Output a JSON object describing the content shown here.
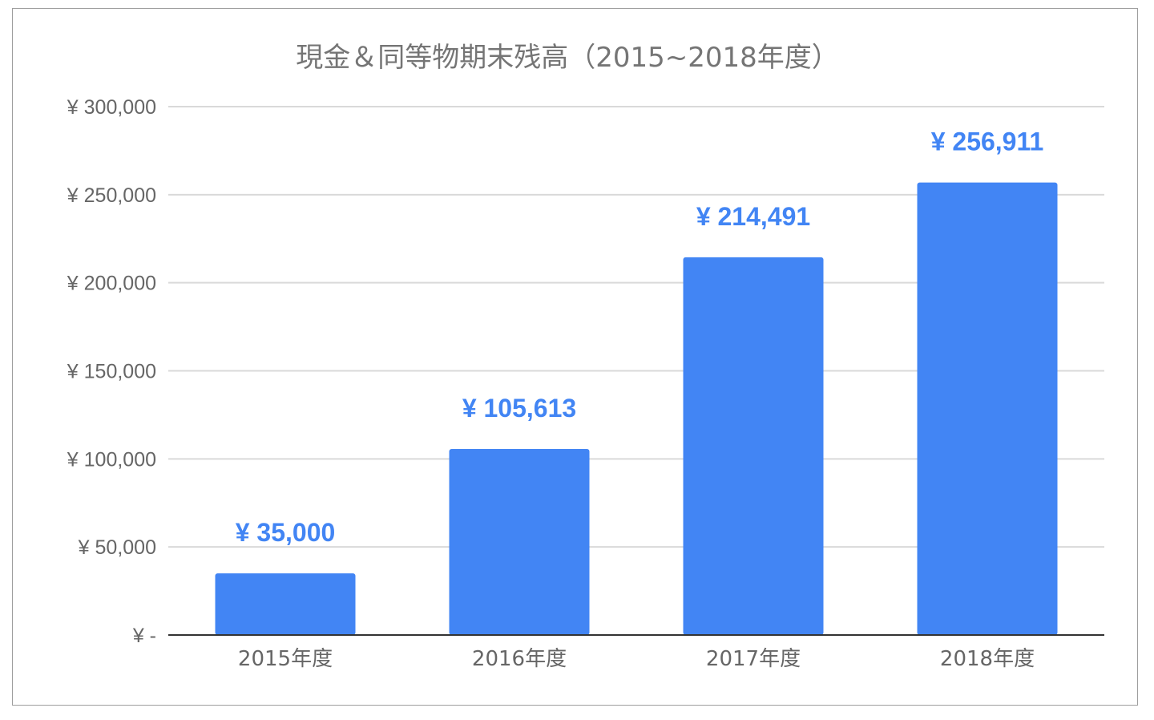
{
  "chart_data": {
    "type": "bar",
    "title": "現金＆同等物期末残高（2015~2018年度）",
    "categories": [
      "2015年度",
      "2016年度",
      "2017年度",
      "2018年度"
    ],
    "values": [
      35000,
      105613,
      214491,
      256911
    ],
    "data_labels": [
      "¥ 35,000",
      "¥ 105,613",
      "¥ 214,491",
      "¥ 256,911"
    ],
    "y_ticks": [
      {
        "value": 0,
        "label": "¥ -"
      },
      {
        "value": 50000,
        "label": "¥ 50,000"
      },
      {
        "value": 100000,
        "label": "¥ 100,000"
      },
      {
        "value": 150000,
        "label": "¥ 150,000"
      },
      {
        "value": 200000,
        "label": "¥ 200,000"
      },
      {
        "value": 250000,
        "label": "¥ 250,000"
      },
      {
        "value": 300000,
        "label": "¥ 300,000"
      }
    ],
    "ylim": [
      0,
      300000
    ],
    "xlabel": "",
    "ylabel": "",
    "grid": true,
    "legend": "none",
    "colors": {
      "bar": "#4285f4",
      "data_label": "#4285f4",
      "gridline": "#d9d9d9",
      "baseline": "#333333",
      "axis_text": "#666666",
      "title_text": "#757575"
    }
  }
}
